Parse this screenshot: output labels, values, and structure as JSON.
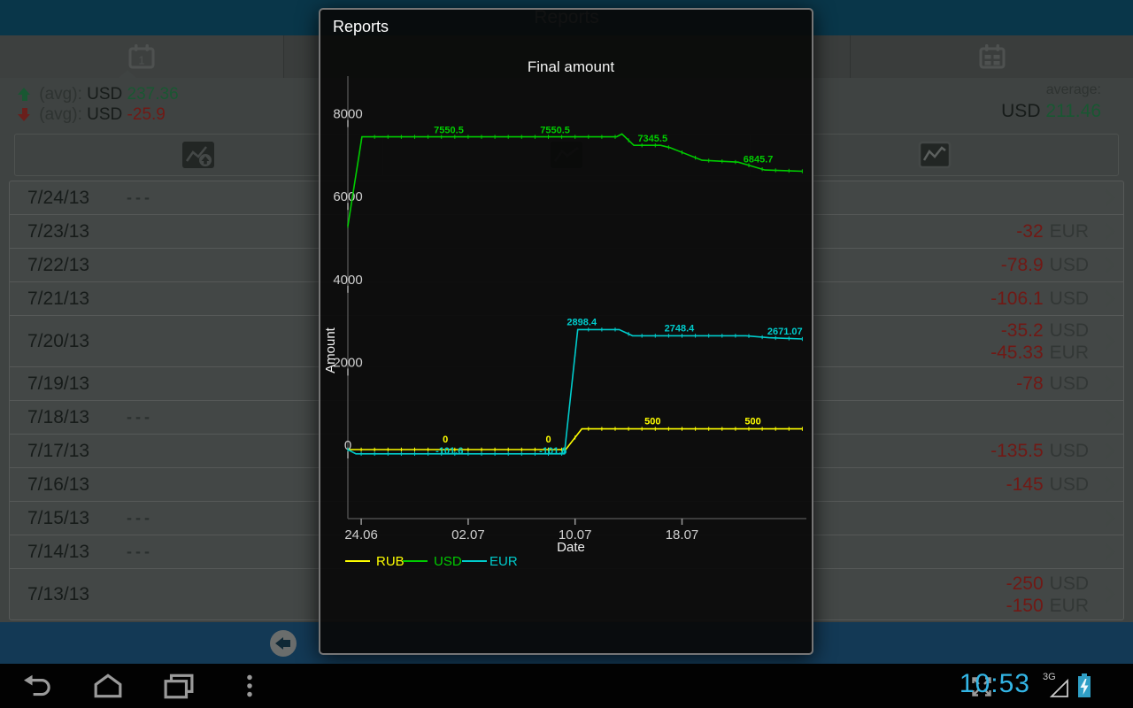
{
  "app": {
    "title": "Reports",
    "tabs": [
      {
        "id": "day",
        "icon": "calendar-day-icon",
        "icon_label": "1",
        "selected": true
      },
      {
        "id": "week",
        "icon": "calendar-week-icon",
        "selected": false
      },
      {
        "id": "month",
        "icon": "calendar-month-icon",
        "selected": false
      }
    ],
    "stats": {
      "income": {
        "icon": "arrow-up-icon",
        "label": "(avg):",
        "currency": "USD",
        "value": "237.36"
      },
      "expense": {
        "icon": "arrow-down-icon",
        "label": "(avg):",
        "currency": "USD",
        "value": "-25.9"
      },
      "average": {
        "label": "average:",
        "currency": "USD",
        "value": "211.46"
      }
    },
    "toolbar": {
      "buttons": [
        {
          "icon": "chart-add-icon"
        },
        {
          "icon": "chart-icon"
        },
        {
          "icon": "line-chart-icon"
        }
      ]
    },
    "list": {
      "rows": [
        {
          "date": "7/24/13",
          "empty": "---",
          "amounts": []
        },
        {
          "date": "7/23/13",
          "amounts": [
            {
              "value": "-32",
              "currency": "EUR"
            }
          ]
        },
        {
          "date": "7/22/13",
          "amounts": [
            {
              "value": "-78.9",
              "currency": "USD"
            }
          ]
        },
        {
          "date": "7/21/13",
          "amounts": [
            {
              "value": "-106.1",
              "currency": "USD"
            }
          ]
        },
        {
          "date": "7/20/13",
          "amounts": [
            {
              "value": "-35.2",
              "currency": "USD"
            },
            {
              "value": "-45.33",
              "currency": "EUR"
            }
          ]
        },
        {
          "date": "7/19/13",
          "amounts": [
            {
              "value": "-78",
              "currency": "USD"
            }
          ]
        },
        {
          "date": "7/18/13",
          "empty": "---",
          "amounts": []
        },
        {
          "date": "7/17/13",
          "amounts": [
            {
              "value": "-135.5",
              "currency": "USD"
            }
          ]
        },
        {
          "date": "7/16/13",
          "amounts": [
            {
              "value": "-145",
              "currency": "USD"
            }
          ]
        },
        {
          "date": "7/15/13",
          "empty": "---",
          "amounts": []
        },
        {
          "date": "7/14/13",
          "empty": "---",
          "amounts": []
        },
        {
          "date": "7/13/13",
          "amounts": [
            {
              "value": "-250",
              "currency": "USD"
            },
            {
              "value": "-150",
              "currency": "EUR"
            }
          ]
        }
      ]
    },
    "bottom_bar": {
      "back_icon": "circle-back-icon"
    },
    "colors": {
      "positive": "#2f9e5c",
      "negative": "#cc2e27",
      "action_bar": "#116385",
      "bottom_bar": "#23689c"
    }
  },
  "dialog": {
    "title": "Reports",
    "chart_data": {
      "type": "line",
      "title": "Final amount",
      "xlabel": "Date",
      "ylabel": "Amount",
      "grid": "off",
      "legend_position": "bottom",
      "x_unit": "days since 23 June 2013",
      "xlim": [
        0,
        34.2
      ],
      "ylim": [
        -1700,
        9000
      ],
      "x_ticks": [
        {
          "x": 1,
          "label": "24.06"
        },
        {
          "x": 9,
          "label": "02.07"
        },
        {
          "x": 17,
          "label": "10.07"
        },
        {
          "x": 25,
          "label": "18.07"
        }
      ],
      "y_ticks": [
        0,
        2000,
        4000,
        6000,
        8000
      ],
      "series": [
        {
          "name": "RUB",
          "color": "#ffff00",
          "points": [
            [
              0,
              0
            ],
            [
              16.3,
              0
            ],
            [
              17.5,
              500
            ],
            [
              34,
              500
            ]
          ],
          "point_labels": [
            {
              "x": 7.3,
              "v": 0,
              "label": "0",
              "dy": -8
            },
            {
              "x": 15.0,
              "v": 0,
              "label": "0",
              "dy": -8
            },
            {
              "x": 22.8,
              "v": 500,
              "label": "500",
              "dy": -5
            },
            {
              "x": 30.3,
              "v": 500,
              "label": "500",
              "dy": -5
            }
          ]
        },
        {
          "name": "USD",
          "color": "#00cc00",
          "points": [
            [
              0,
              5400
            ],
            [
              1.05,
              7550.5
            ],
            [
              20.1,
              7550.5
            ],
            [
              20.5,
              7620
            ],
            [
              21.4,
              7345.5
            ],
            [
              23.4,
              7345.5
            ],
            [
              24.1,
              7290
            ],
            [
              26.5,
              6985
            ],
            [
              29.2,
              6940
            ],
            [
              30.2,
              6845.7
            ],
            [
              31.2,
              6750
            ],
            [
              34,
              6720
            ]
          ],
          "point_labels": [
            {
              "x": 7.55,
              "v": 7550.5,
              "label": "7550.5",
              "dy": -4
            },
            {
              "x": 15.5,
              "v": 7550.5,
              "label": "7550.5",
              "dy": -4
            },
            {
              "x": 22.8,
              "v": 7345.5,
              "label": "7345.5",
              "dy": -4
            },
            {
              "x": 30.7,
              "v": 6845.7,
              "label": "6845.7",
              "dy": -4
            }
          ]
        },
        {
          "name": "EUR",
          "color": "#00cccc",
          "points": [
            [
              0,
              0
            ],
            [
              0.6,
              -101.6
            ],
            [
              16.2,
              -101.6
            ],
            [
              17.2,
              2898.4
            ],
            [
              20.3,
              2898.4
            ],
            [
              21.3,
              2748.4
            ],
            [
              29.8,
              2748.4
            ],
            [
              31.5,
              2700
            ],
            [
              34,
              2671.07
            ]
          ],
          "point_labels": [
            {
              "x": 7.6,
              "v": -101.6,
              "label": "-101.6",
              "dy": 0
            },
            {
              "x": 15.35,
              "v": -101.6,
              "label": "-101.6",
              "dy": 0
            },
            {
              "x": 17.5,
              "v": 2898.4,
              "label": "2898.4",
              "dy": -5
            },
            {
              "x": 24.8,
              "v": 2748.4,
              "label": "2748.4",
              "dy": -5
            },
            {
              "x": 32.7,
              "v": 2671.07,
              "label": "2671.07",
              "dy": -5
            }
          ]
        }
      ]
    }
  },
  "nav_bar": {
    "clock": "10:53",
    "network_badge": "3G"
  }
}
